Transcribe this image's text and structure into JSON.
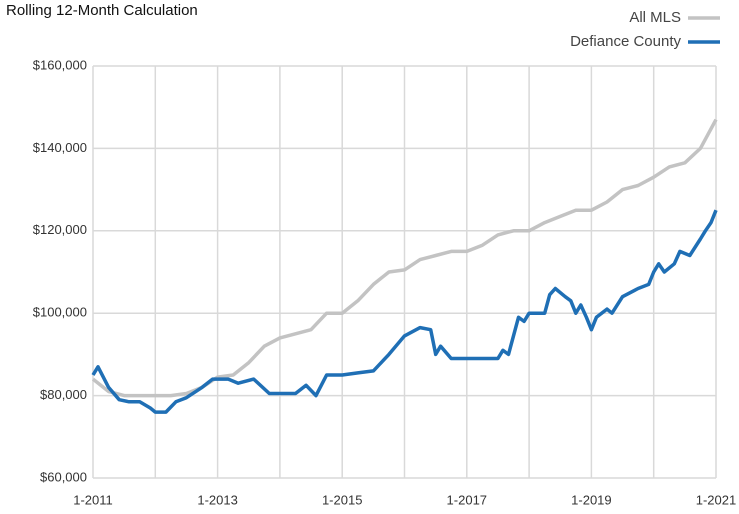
{
  "chart_data": {
    "type": "line",
    "title": "Rolling 12-Month Calculation",
    "xlim": [
      2011,
      2021
    ],
    "xticks": [
      {
        "value": 2011,
        "label": "1-2011"
      },
      {
        "value": 2013,
        "label": "1-2013"
      },
      {
        "value": 2015,
        "label": "1-2015"
      },
      {
        "value": 2017,
        "label": "1-2017"
      },
      {
        "value": 2019,
        "label": "1-2019"
      },
      {
        "value": 2021,
        "label": "1-2021"
      }
    ],
    "xminor": [
      2012,
      2014,
      2016,
      2018,
      2020
    ],
    "ylim": [
      60000,
      160000
    ],
    "yticks": [
      {
        "value": 60000,
        "label": "$60,000"
      },
      {
        "value": 80000,
        "label": "$80,000"
      },
      {
        "value": 100000,
        "label": "$100,000"
      },
      {
        "value": 120000,
        "label": "$120,000"
      },
      {
        "value": 140000,
        "label": "$140,000"
      },
      {
        "value": 160000,
        "label": "$160,000"
      }
    ],
    "grid": true,
    "legend": "top-right",
    "series": [
      {
        "name": "All MLS",
        "color": "#c3c3c3",
        "x": [
          2011,
          2011.25,
          2011.5,
          2011.75,
          2012,
          2012.25,
          2012.5,
          2012.75,
          2013,
          2013.25,
          2013.5,
          2013.75,
          2014,
          2014.25,
          2014.5,
          2014.75,
          2015,
          2015.25,
          2015.5,
          2015.75,
          2016,
          2016.25,
          2016.5,
          2016.75,
          2017,
          2017.25,
          2017.5,
          2017.75,
          2018,
          2018.25,
          2018.5,
          2018.75,
          2019,
          2019.25,
          2019.5,
          2019.75,
          2020,
          2020.25,
          2020.5,
          2020.75,
          2021
        ],
        "values": [
          84000,
          81000,
          80000,
          80000,
          80000,
          80000,
          80500,
          82000,
          84500,
          85000,
          88000,
          92000,
          94000,
          95000,
          96000,
          100000,
          100000,
          103000,
          107000,
          110000,
          110500,
          113000,
          114000,
          115000,
          115000,
          116500,
          119000,
          120000,
          120000,
          122000,
          123500,
          125000,
          125000,
          127000,
          130000,
          131000,
          133000,
          135500,
          136500,
          140000,
          147000
        ]
      },
      {
        "name": "Defiance County",
        "color": "#1f6fb5",
        "x": [
          2011,
          2011.08,
          2011.25,
          2011.42,
          2011.58,
          2011.75,
          2011.92,
          2012,
          2012.17,
          2012.33,
          2012.5,
          2012.75,
          2012.92,
          2013.17,
          2013.33,
          2013.58,
          2013.83,
          2014.08,
          2014.25,
          2014.42,
          2014.58,
          2014.75,
          2015,
          2015.25,
          2015.5,
          2015.75,
          2016,
          2016.25,
          2016.42,
          2016.5,
          2016.58,
          2016.75,
          2017,
          2017.5,
          2017.58,
          2017.67,
          2017.83,
          2017.92,
          2018,
          2018.25,
          2018.33,
          2018.42,
          2018.58,
          2018.67,
          2018.75,
          2018.83,
          2018.92,
          2019,
          2019.08,
          2019.25,
          2019.33,
          2019.5,
          2019.75,
          2019.92,
          2020,
          2020.08,
          2020.17,
          2020.33,
          2020.42,
          2020.58,
          2020.75,
          2020.83,
          2020.92,
          2021
        ],
        "values": [
          85000,
          87000,
          82000,
          79000,
          78500,
          78500,
          77000,
          76000,
          76000,
          78500,
          79500,
          82000,
          84000,
          84000,
          83000,
          84000,
          80500,
          80500,
          80500,
          82500,
          80000,
          85000,
          85000,
          85500,
          86000,
          90000,
          94500,
          96500,
          96000,
          90000,
          92000,
          89000,
          89000,
          89000,
          91000,
          90000,
          99000,
          98000,
          100000,
          100000,
          104500,
          106000,
          104000,
          103000,
          100000,
          102000,
          99000,
          96000,
          99000,
          101000,
          100000,
          104000,
          106000,
          107000,
          110000,
          112000,
          110000,
          112000,
          115000,
          114000,
          118000,
          120000,
          122000,
          125000
        ]
      }
    ]
  }
}
